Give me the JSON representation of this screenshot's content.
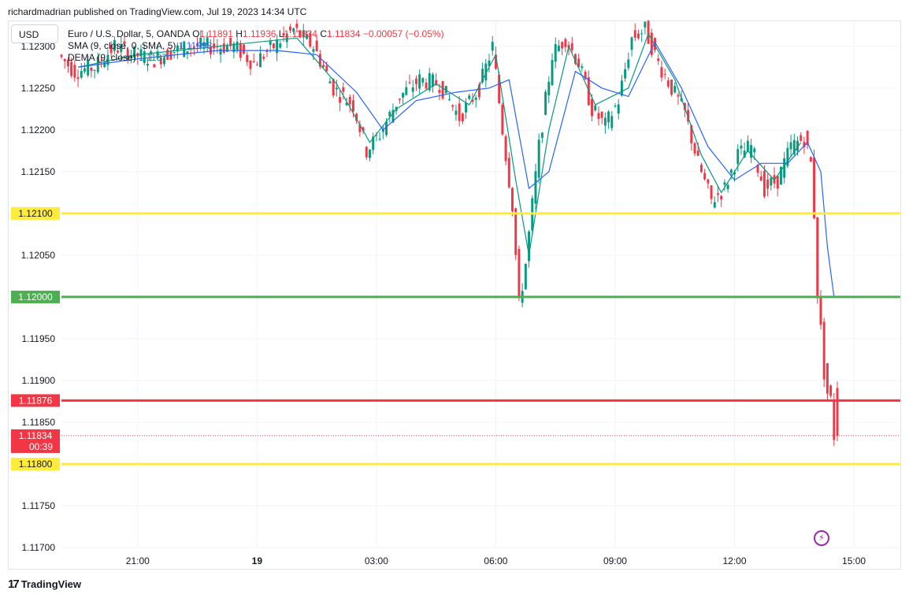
{
  "header": {
    "publish_line": "richardmadrian published on TradingView.com, Jul 19, 2023 14:34 UTC"
  },
  "currency_button": "USD",
  "legend": {
    "symbol": "Euro / U.S. Dollar, 5, OANDA",
    "open_label": "O",
    "open_value": "1.11891",
    "high_label": "H",
    "high_value": "1.11936",
    "low_label": "L",
    "low_value": "1.11834",
    "close_label": "C",
    "close_value": "1.11834",
    "change": "−0.00057 (−0.05%)",
    "sma_label": "SMA (9, close, 0, SMA, 5)",
    "sma_value": "1.11998",
    "dema_label": "DEMA (9, close)",
    "dema_value": "1.1187"
  },
  "footer": {
    "brand": "TradingView",
    "logo_mark": "17"
  },
  "bolt_icon": "lightning-bolt-icon",
  "colors": {
    "up": "#089981",
    "down": "#f23645",
    "sma": "#2962ff",
    "dema": "#089981",
    "yellow": "#ffeb3b",
    "green": "#4caf50",
    "red": "#f23645",
    "grid": "#f0f3fa"
  },
  "chart_data": {
    "type": "candlestick",
    "symbol": "EURUSD",
    "timeframe": "5",
    "y_range": [
      1.117,
      1.1233
    ],
    "y_ticks": [
      "1.12300",
      "1.12250",
      "1.12200",
      "1.12150",
      "1.12100",
      "1.12050",
      "1.12000",
      "1.11950",
      "1.11900",
      "1.11850",
      "1.11800",
      "1.11750",
      "1.11700"
    ],
    "x_range": [
      "2023-07-18 19:05",
      "2023-07-19 16:10"
    ],
    "x_ticks": [
      {
        "label": "21:00",
        "time": "2023-07-18 21:00"
      },
      {
        "label": "19",
        "time": "2023-07-19 00:00",
        "bold": true
      },
      {
        "label": "03:00",
        "time": "2023-07-19 03:00"
      },
      {
        "label": "06:00",
        "time": "2023-07-19 06:00"
      },
      {
        "label": "09:00",
        "time": "2023-07-19 09:00"
      },
      {
        "label": "12:00",
        "time": "2023-07-19 12:00"
      },
      {
        "label": "15:00",
        "time": "2023-07-19 15:00"
      }
    ],
    "horizontal_lines": [
      {
        "price": 1.121,
        "label": "1.12100",
        "color": "#ffeb3b"
      },
      {
        "price": 1.12,
        "label": "1.12000",
        "color": "#4caf50"
      },
      {
        "price": 1.11876,
        "label": "1.11876",
        "color": "#f23645"
      },
      {
        "price": 1.118,
        "label": "1.11800",
        "color": "#ffeb3b"
      }
    ],
    "last_price": {
      "price": 1.11834,
      "label": "1.11834",
      "countdown": "00:39"
    },
    "price_path": [
      [
        "2023-07-18 19:05",
        1.1229
      ],
      [
        "2023-07-18 19:30",
        1.1227
      ],
      [
        "2023-07-18 20:00",
        1.12275
      ],
      [
        "2023-07-18 20:30",
        1.123
      ],
      [
        "2023-07-18 21:00",
        1.1229
      ],
      [
        "2023-07-18 21:30",
        1.12285
      ],
      [
        "2023-07-18 22:00",
        1.12295
      ],
      [
        "2023-07-18 22:30",
        1.123
      ],
      [
        "2023-07-18 23:00",
        1.123
      ],
      [
        "2023-07-18 23:30",
        1.123
      ],
      [
        "2023-07-19 00:00",
        1.1228
      ],
      [
        "2023-07-19 00:30",
        1.123
      ],
      [
        "2023-07-19 01:00",
        1.1232
      ],
      [
        "2023-07-19 01:30",
        1.123
      ],
      [
        "2023-07-19 02:00",
        1.1225
      ],
      [
        "2023-07-19 02:30",
        1.1223
      ],
      [
        "2023-07-19 02:50",
        1.12175
      ],
      [
        "2023-07-19 03:10",
        1.12195
      ],
      [
        "2023-07-19 03:40",
        1.1224
      ],
      [
        "2023-07-19 04:10",
        1.1226
      ],
      [
        "2023-07-19 04:40",
        1.12255
      ],
      [
        "2023-07-19 05:10",
        1.12215
      ],
      [
        "2023-07-19 05:40",
        1.1225
      ],
      [
        "2023-07-19 06:00",
        1.123
      ],
      [
        "2023-07-19 06:15",
        1.122
      ],
      [
        "2023-07-19 06:30",
        1.1211
      ],
      [
        "2023-07-19 06:40",
        1.1199
      ],
      [
        "2023-07-19 06:50",
        1.1204
      ],
      [
        "2023-07-19 07:10",
        1.1218
      ],
      [
        "2023-07-19 07:30",
        1.1229
      ],
      [
        "2023-07-19 07:50",
        1.1231
      ],
      [
        "2023-07-19 08:10",
        1.1228
      ],
      [
        "2023-07-19 08:30",
        1.12225
      ],
      [
        "2023-07-19 08:50",
        1.12205
      ],
      [
        "2023-07-19 09:10",
        1.12235
      ],
      [
        "2023-07-19 09:30",
        1.1231
      ],
      [
        "2023-07-19 09:50",
        1.1232
      ],
      [
        "2023-07-19 10:10",
        1.1228
      ],
      [
        "2023-07-19 10:30",
        1.1225
      ],
      [
        "2023-07-19 10:50",
        1.1222
      ],
      [
        "2023-07-19 11:10",
        1.1216
      ],
      [
        "2023-07-19 11:30",
        1.12115
      ],
      [
        "2023-07-19 11:50",
        1.1213
      ],
      [
        "2023-07-19 12:10",
        1.1217
      ],
      [
        "2023-07-19 12:30",
        1.1218
      ],
      [
        "2023-07-19 12:50",
        1.1213
      ],
      [
        "2023-07-19 13:10",
        1.1214
      ],
      [
        "2023-07-19 13:30",
        1.1218
      ],
      [
        "2023-07-19 13:50",
        1.1219
      ],
      [
        "2023-07-19 14:00",
        1.1216
      ],
      [
        "2023-07-19 14:05",
        1.121
      ],
      [
        "2023-07-19 14:10",
        1.12005
      ],
      [
        "2023-07-19 14:15",
        1.1196
      ],
      [
        "2023-07-19 14:20",
        1.1191
      ],
      [
        "2023-07-19 14:25",
        1.11885
      ],
      [
        "2023-07-19 14:30",
        1.11876
      ],
      [
        "2023-07-19 14:35",
        1.11834
      ]
    ],
    "sma_path": [
      [
        "2023-07-18 19:30",
        1.12275
      ],
      [
        "2023-07-18 21:00",
        1.12285
      ],
      [
        "2023-07-18 23:00",
        1.12295
      ],
      [
        "2023-07-19 00:30",
        1.12295
      ],
      [
        "2023-07-19 01:30",
        1.1229
      ],
      [
        "2023-07-19 02:30",
        1.12245
      ],
      [
        "2023-07-19 03:10",
        1.122
      ],
      [
        "2023-07-19 04:00",
        1.12235
      ],
      [
        "2023-07-19 05:00",
        1.12245
      ],
      [
        "2023-07-19 05:50",
        1.1225
      ],
      [
        "2023-07-19 06:20",
        1.1226
      ],
      [
        "2023-07-19 06:50",
        1.1213
      ],
      [
        "2023-07-19 07:20",
        1.1215
      ],
      [
        "2023-07-19 08:00",
        1.1227
      ],
      [
        "2023-07-19 08:40",
        1.1225
      ],
      [
        "2023-07-19 09:20",
        1.1224
      ],
      [
        "2023-07-19 10:00",
        1.12305
      ],
      [
        "2023-07-19 10:40",
        1.1225
      ],
      [
        "2023-07-19 11:20",
        1.1218
      ],
      [
        "2023-07-19 12:00",
        1.1214
      ],
      [
        "2023-07-19 12:40",
        1.1216
      ],
      [
        "2023-07-19 13:20",
        1.1216
      ],
      [
        "2023-07-19 13:50",
        1.12185
      ],
      [
        "2023-07-19 14:10",
        1.1215
      ],
      [
        "2023-07-19 14:20",
        1.1206
      ],
      [
        "2023-07-19 14:30",
        1.12
      ]
    ],
    "dema_path": [
      [
        "2023-07-18 19:30",
        1.12275
      ],
      [
        "2023-07-18 21:00",
        1.1229
      ],
      [
        "2023-07-18 23:00",
        1.123
      ],
      [
        "2023-07-19 01:00",
        1.1231
      ],
      [
        "2023-07-19 02:00",
        1.12255
      ],
      [
        "2023-07-19 02:50",
        1.12185
      ],
      [
        "2023-07-19 03:30",
        1.12225
      ],
      [
        "2023-07-19 04:30",
        1.12255
      ],
      [
        "2023-07-19 05:20",
        1.1223
      ],
      [
        "2023-07-19 06:00",
        1.1229
      ],
      [
        "2023-07-19 06:30",
        1.1214
      ],
      [
        "2023-07-19 06:50",
        1.1205
      ],
      [
        "2023-07-19 07:20",
        1.122
      ],
      [
        "2023-07-19 07:50",
        1.123
      ],
      [
        "2023-07-19 08:30",
        1.1223
      ],
      [
        "2023-07-19 09:20",
        1.1225
      ],
      [
        "2023-07-19 09:50",
        1.12315
      ],
      [
        "2023-07-19 10:30",
        1.1226
      ],
      [
        "2023-07-19 11:10",
        1.1217
      ],
      [
        "2023-07-19 11:40",
        1.12125
      ],
      [
        "2023-07-19 12:20",
        1.12175
      ],
      [
        "2023-07-19 13:00",
        1.1214
      ],
      [
        "2023-07-19 13:40",
        1.12185
      ]
    ]
  }
}
